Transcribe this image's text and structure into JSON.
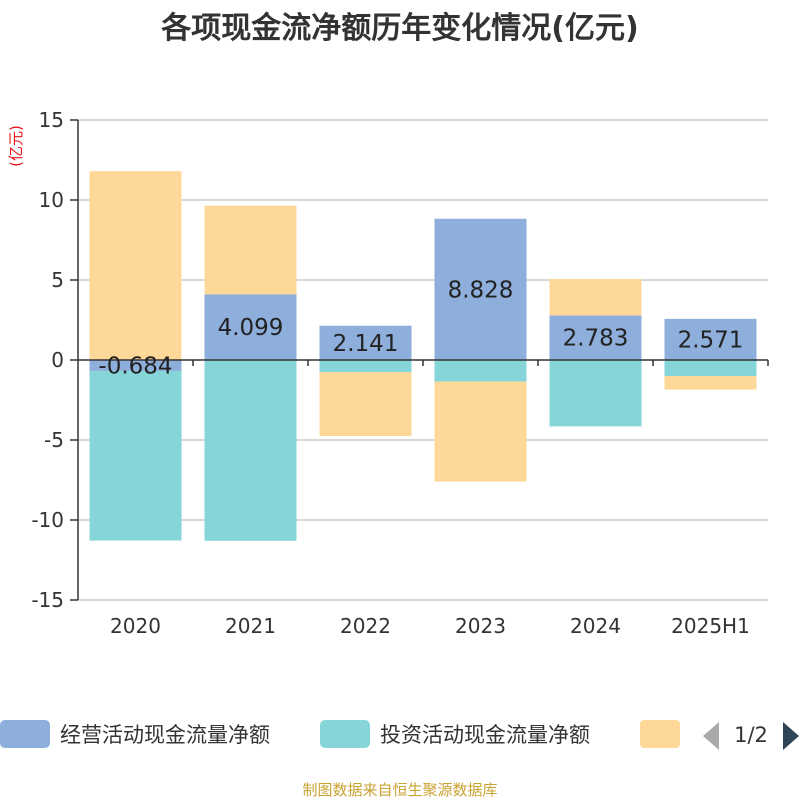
{
  "title": "各项现金流净额历年变化情况(亿元)",
  "unit_label": "(亿元)",
  "source": "制图数据来自恒生聚源数据库",
  "colors": {
    "operating": "#8eaedb",
    "investing": "#86d5d8",
    "financing": "#fdd898",
    "grid": "#cccccc",
    "axis": "#333333",
    "pager_active": "#2f4558",
    "pager_inactive": "#aaaaaa"
  },
  "legend": {
    "items": [
      "经营活动现金流量净额",
      "投资活动现金流量净额",
      ""
    ],
    "page": "1/2",
    "prev_icon": "triangle-left-icon",
    "next_icon": "triangle-right-icon"
  },
  "chart_data": {
    "type": "bar",
    "stacked": true,
    "categories": [
      "2020",
      "2021",
      "2022",
      "2023",
      "2024",
      "2025H1"
    ],
    "ylim": [
      -15,
      15
    ],
    "yticks": [
      "15",
      "10",
      "5",
      "0",
      "-5",
      "-10",
      "-15"
    ],
    "grid": true,
    "series": [
      {
        "name": "经营活动现金流量净额",
        "values": [
          -0.684,
          4.099,
          2.141,
          8.828,
          2.783,
          2.571
        ],
        "labels": [
          "-0.684",
          "4.099",
          "2.141",
          "8.828",
          "2.783",
          "2.571"
        ]
      },
      {
        "name": "投资活动现金流量净额",
        "values": [
          -10.6,
          -11.3,
          -0.75,
          -1.35,
          -4.15,
          -1.0
        ]
      },
      {
        "name": "",
        "values": [
          11.8,
          5.55,
          -4.0,
          -6.25,
          2.28,
          -0.85
        ]
      }
    ]
  }
}
